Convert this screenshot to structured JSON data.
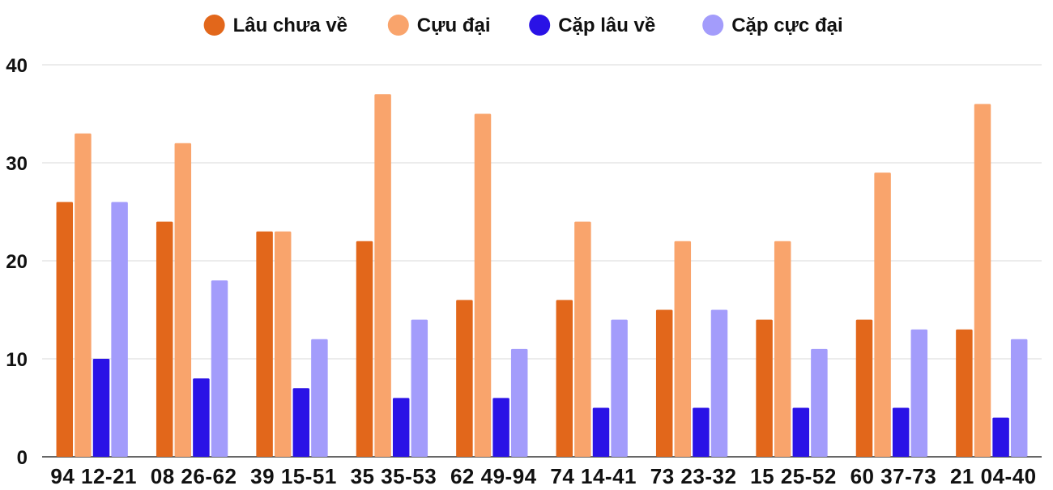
{
  "chart_data": {
    "type": "bar",
    "categories": [
      "94 12-21",
      "08 26-62",
      "39 15-51",
      "35 35-53",
      "62 49-94",
      "74 14-41",
      "73 23-32",
      "15 25-52",
      "60 37-73",
      "21 04-40"
    ],
    "series": [
      {
        "name": "Lâu chưa về",
        "color": "#e2671b",
        "values": [
          26,
          24,
          23,
          22,
          16,
          16,
          15,
          14,
          14,
          13
        ]
      },
      {
        "name": "Cựu đại",
        "color": "#f9a46c",
        "values": [
          33,
          32,
          23,
          37,
          35,
          24,
          22,
          22,
          29,
          36
        ]
      },
      {
        "name": "Cặp lâu về",
        "color": "#2a12e6",
        "values": [
          10,
          8,
          7,
          6,
          6,
          5,
          5,
          5,
          5,
          4
        ]
      },
      {
        "name": "Cặp cực đại",
        "color": "#a39cfb",
        "values": [
          26,
          18,
          12,
          14,
          11,
          14,
          15,
          11,
          13,
          12
        ]
      }
    ],
    "ylim": [
      0,
      40
    ],
    "yticks": [
      0,
      10,
      20,
      30,
      40
    ],
    "grid": true,
    "legend_position": "top-center",
    "title": "",
    "xlabel": "",
    "ylabel": ""
  }
}
